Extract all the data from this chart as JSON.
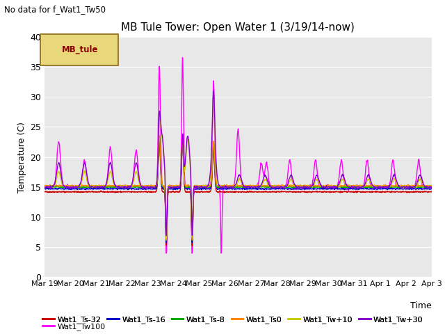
{
  "title": "MB Tule Tower: Open Water 1 (3/19/14-now)",
  "no_data_text": "No data for f_Wat1_Tw50",
  "xlabel": "Time",
  "ylabel": "Temperature (C)",
  "ylim": [
    0,
    40
  ],
  "yticks": [
    0,
    5,
    10,
    15,
    20,
    25,
    30,
    35,
    40
  ],
  "bg_color": "#e8e8e8",
  "legend_box_facecolor": "#e8d87a",
  "legend_box_edgecolor": "#8b6914",
  "legend_box_text_color": "#8b0000",
  "legend_box_label": "MB_tule",
  "series": [
    {
      "label": "Wat1_Ts-32",
      "color": "#cc0000"
    },
    {
      "label": "Wat1_Ts-16",
      "color": "#0000cc"
    },
    {
      "label": "Wat1_Ts-8",
      "color": "#00aa00"
    },
    {
      "label": "Wat1_Ts0",
      "color": "#ff8800"
    },
    {
      "label": "Wat1_Tw+10",
      "color": "#cccc00"
    },
    {
      "label": "Wat1_Tw+30",
      "color": "#8800cc"
    },
    {
      "label": "Wat1_Tw100",
      "color": "#ff00ff"
    }
  ],
  "x_tick_labels": [
    "Mar 19",
    "Mar 20",
    "Mar 21",
    "Mar 22",
    "Mar 23",
    "Mar 24",
    "Mar 25",
    "Mar 26",
    "Mar 27",
    "Mar 28",
    "Mar 29",
    "Mar 30",
    "Mar 31",
    "Apr 1",
    "Apr 2",
    "Apr 3"
  ],
  "n_days": 15,
  "seed": 42
}
